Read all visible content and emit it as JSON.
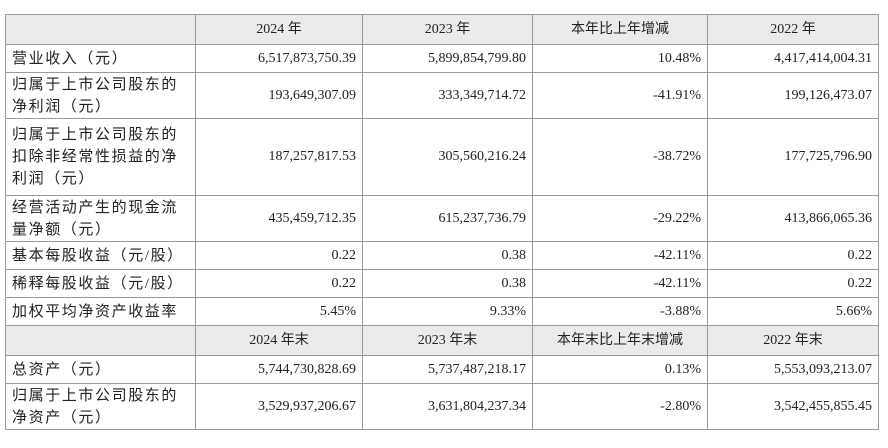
{
  "table": {
    "header": [
      "2024 年",
      "2023 年",
      "本年比上年增减",
      "2022 年"
    ],
    "rows": [
      [
        "营业收入（元）",
        "6,517,873,750.39",
        "5,899,854,799.80",
        "10.48%",
        "4,417,414,004.31"
      ],
      [
        "归属于上市公司股东的净利润（元）",
        "193,649,307.09",
        "333,349,714.72",
        "-41.91%",
        "199,126,473.07"
      ],
      [
        "归属于上市公司股东的扣除非经常性损益的净利润（元）",
        "187,257,817.53",
        "305,560,216.24",
        "-38.72%",
        "177,725,796.90"
      ],
      [
        "经营活动产生的现金流量净额（元）",
        "435,459,712.35",
        "615,237,736.79",
        "-29.22%",
        "413,866,065.36"
      ],
      [
        "基本每股收益（元/股）",
        "0.22",
        "0.38",
        "-42.11%",
        "0.22"
      ],
      [
        "稀释每股收益（元/股）",
        "0.22",
        "0.38",
        "-42.11%",
        "0.22"
      ],
      [
        "加权平均净资产收益率",
        "5.45%",
        "9.33%",
        "-3.88%",
        "5.66%"
      ]
    ],
    "header2": [
      "2024 年末",
      "2023 年末",
      "本年末比上年末增减",
      "2022 年末"
    ],
    "rows2": [
      [
        "总资产（元）",
        "5,744,730,828.69",
        "5,737,487,218.17",
        "0.13%",
        "5,553,093,213.07"
      ],
      [
        "归属于上市公司股东的净资产（元）",
        "3,529,937,206.67",
        "3,631,804,237.34",
        "-2.80%",
        "3,542,455,855.45"
      ]
    ]
  }
}
